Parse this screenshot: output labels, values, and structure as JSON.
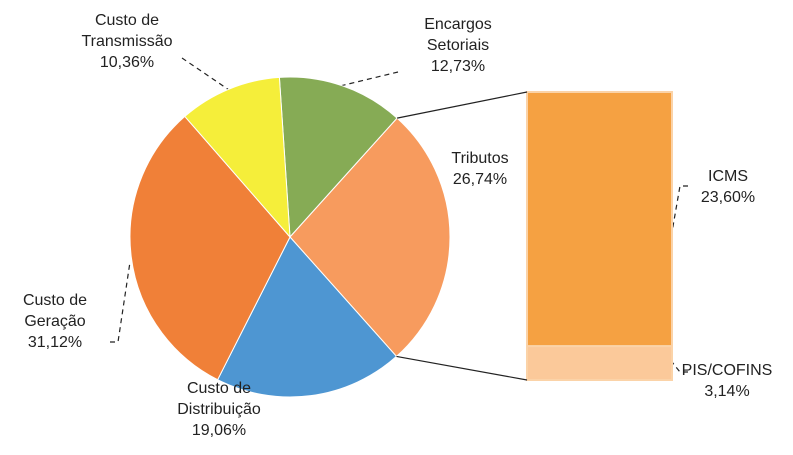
{
  "chart_data": {
    "type": "pie-of-bar",
    "categories": [
      "Encargos Setoriais",
      "Tributos",
      "Custo de Distribuição",
      "Custo de Geração",
      "Custo de Transmissão"
    ],
    "values": [
      12.73,
      26.74,
      19.06,
      31.12,
      10.36
    ],
    "value_labels": [
      "12,73%",
      "26,74%",
      "19,06%",
      "31,12%",
      "10,36%"
    ],
    "colors": [
      "#86ab55",
      "#f79b5e",
      "#4e96d2",
      "#f08038",
      "#f5ee3a"
    ],
    "split_index": 1,
    "bar": {
      "categories": [
        "ICMS",
        "PIS/COFINS"
      ],
      "values": [
        23.6,
        3.14
      ],
      "value_labels": [
        "23,60%",
        "3,14%"
      ],
      "colors": [
        "#f5a142",
        "#fbc99a"
      ]
    }
  }
}
